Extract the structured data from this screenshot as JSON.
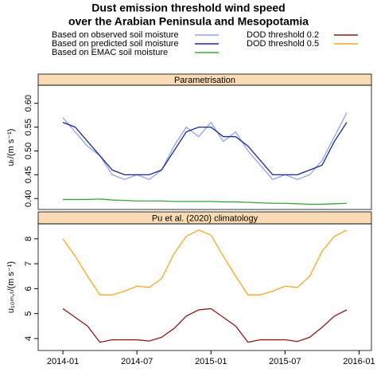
{
  "chart_data": [
    {
      "type": "line",
      "title": [
        "Dust emission threshold wind speed",
        "over the Arabian Peninsula and Mesopotamia"
      ],
      "panel_title": "Parametrisation",
      "y_label": "uₜ/(m s⁻¹)",
      "x": [
        "2014-01",
        "2014-02",
        "2014-03",
        "2014-04",
        "2014-05",
        "2014-06",
        "2014-07",
        "2014-08",
        "2014-09",
        "2014-10",
        "2014-11",
        "2014-12",
        "2015-01",
        "2015-02",
        "2015-03",
        "2015-04",
        "2015-05",
        "2015-06",
        "2015-07",
        "2015-08",
        "2015-09",
        "2015-10",
        "2015-11",
        "2015-12"
      ],
      "xlim": [
        "2013-11",
        "2016-02"
      ],
      "ylim": [
        0.377,
        0.638
      ],
      "yticks": [
        {
          "value": 0.4,
          "label": "0.40"
        },
        0.45,
        {
          "value": 0.5,
          "label": "0.50"
        },
        0.55,
        {
          "value": 0.6,
          "label": "0.60"
        }
      ],
      "series": [
        {
          "name": "Based on observed soil moisture",
          "color": "#8ea4f0",
          "values": [
            0.57,
            0.54,
            0.51,
            0.49,
            0.45,
            0.44,
            0.45,
            0.44,
            0.46,
            0.51,
            0.55,
            0.53,
            0.56,
            0.52,
            0.54,
            0.5,
            0.47,
            0.44,
            0.45,
            0.44,
            0.45,
            0.48,
            0.53,
            0.58
          ]
        },
        {
          "name": "Based on predicted soil moisture",
          "color": "#1a2a8c",
          "values": [
            0.56,
            0.55,
            0.52,
            0.49,
            0.46,
            0.45,
            0.45,
            0.45,
            0.46,
            0.5,
            0.54,
            0.55,
            0.55,
            0.53,
            0.53,
            0.51,
            0.48,
            0.45,
            0.45,
            0.45,
            0.46,
            0.47,
            0.52,
            0.56
          ]
        },
        {
          "name": "Based on EMAC soil moisture",
          "color": "#3aa63a",
          "values": [
            0.398,
            0.398,
            0.398,
            0.399,
            0.397,
            0.396,
            0.395,
            0.395,
            0.395,
            0.394,
            0.394,
            0.394,
            0.394,
            0.393,
            0.393,
            0.392,
            0.391,
            0.39,
            0.39,
            0.389,
            0.388,
            0.388,
            0.389,
            0.39
          ]
        }
      ]
    },
    {
      "type": "line",
      "panel_title": "Pu et al. (2020)  climatology",
      "y_label": "u₁₀ₘ,ₜ/(m s⁻¹)",
      "x": [
        "2014-01",
        "2014-02",
        "2014-03",
        "2014-04",
        "2014-05",
        "2014-06",
        "2014-07",
        "2014-08",
        "2014-09",
        "2014-10",
        "2014-11",
        "2014-12",
        "2015-01",
        "2015-02",
        "2015-03",
        "2015-04",
        "2015-05",
        "2015-06",
        "2015-07",
        "2015-08",
        "2015-09",
        "2015-10",
        "2015-11",
        "2015-12"
      ],
      "xlim": [
        "2013-11",
        "2016-02"
      ],
      "xticks": [
        "2014-01",
        "2014-07",
        "2015-01",
        "2015-07",
        "2016-01"
      ],
      "ylim": [
        3.52,
        8.6
      ],
      "yticks": [
        4,
        5,
        6,
        7,
        8
      ],
      "series": [
        {
          "name": "DOD threshold 0.2",
          "color": "#8b1a1a",
          "values": [
            5.2,
            4.85,
            4.5,
            3.85,
            3.95,
            3.95,
            3.95,
            3.9,
            4.05,
            4.4,
            4.9,
            5.15,
            5.2,
            4.85,
            4.5,
            3.85,
            3.95,
            3.95,
            3.95,
            3.88,
            4.05,
            4.45,
            4.9,
            5.15
          ]
        },
        {
          "name": "DOD threshold 0.5",
          "color": "#f5a623",
          "values": [
            8.0,
            7.3,
            6.5,
            5.75,
            5.75,
            5.9,
            6.1,
            6.05,
            6.4,
            7.4,
            8.1,
            8.35,
            8.15,
            7.3,
            6.5,
            5.75,
            5.75,
            5.9,
            6.1,
            6.05,
            6.5,
            7.5,
            8.1,
            8.35
          ]
        }
      ]
    }
  ]
}
